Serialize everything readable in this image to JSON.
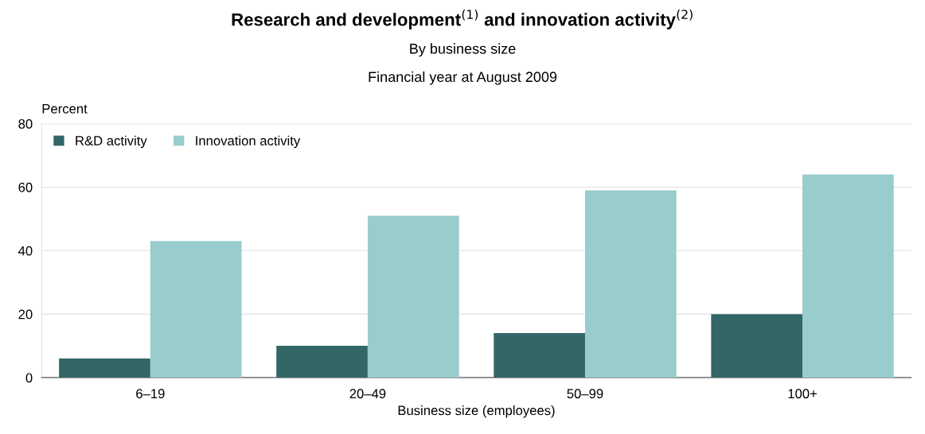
{
  "chart_data": {
    "type": "bar",
    "title": "Research and development$^{(1)}$ and innovation activity$^{(2)}$",
    "subtitle": "By business size\nFinancial year at August 2009",
    "ylabel": "Percent",
    "xlabel": "Business size (employees)",
    "categories": [
      "6–19",
      "20–49",
      "50–99",
      "100+"
    ],
    "series": [
      {
        "name": "R&D activity",
        "color": "#336666",
        "values": [
          6,
          10,
          14,
          20
        ]
      },
      {
        "name": "Innovation activity",
        "color": "#99cccc",
        "values": [
          43,
          51,
          59,
          64
        ]
      }
    ],
    "ylim": [
      0,
      80
    ],
    "yticks": [
      0,
      20,
      40,
      60,
      80
    ],
    "grid": "y",
    "legend": "top left"
  }
}
